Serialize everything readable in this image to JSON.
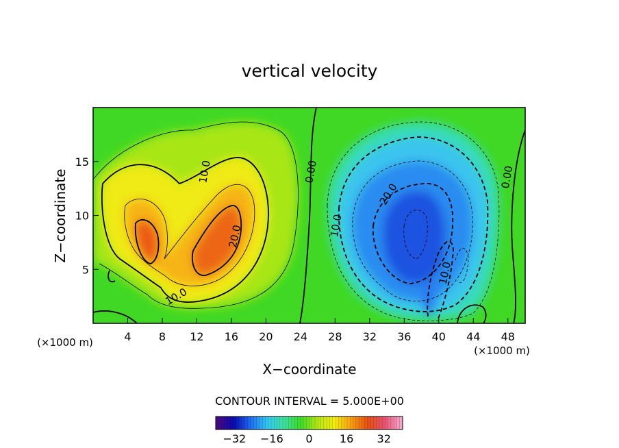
{
  "chart_data": {
    "type": "heatmap",
    "title": "vertical velocity",
    "xlabel": "X−coordinate",
    "ylabel": "Z−coordinate",
    "x_unit_left": "(×1000 m)",
    "x_unit_right": "(×1000 m)",
    "xlim": [
      0,
      50
    ],
    "ylim": [
      0,
      20
    ],
    "x_ticks": [
      4,
      8,
      12,
      16,
      20,
      24,
      28,
      32,
      36,
      40,
      44,
      48
    ],
    "y_ticks": [
      5,
      10,
      15
    ],
    "contour_interval_text": "CONTOUR INTERVAL = 5.000E+00",
    "contour_labels": [
      {
        "text": "10.0",
        "x": 13.3,
        "z": 14.0
      },
      {
        "text": "20.0",
        "x": 16.8,
        "z": 8.0
      },
      {
        "text": "10.0",
        "x": 9.8,
        "z": 2.2
      },
      {
        "text": "0.00",
        "x": 25.6,
        "z": 14.0
      },
      {
        "text": "0.00",
        "x": 48.3,
        "z": 13.5
      },
      {
        "text": "10.0",
        "x": 28.5,
        "z": 9.0
      },
      {
        "text": "20.0",
        "x": 34.5,
        "z": 11.8
      },
      {
        "text": "10.0",
        "x": 41.1,
        "z": 4.6
      }
    ],
    "features": [
      {
        "kind": "updraft",
        "x": 15.5,
        "z": 8.0,
        "peak": 25
      },
      {
        "kind": "updraft",
        "x": 6.3,
        "z": 7.8,
        "peak": 25
      },
      {
        "kind": "downdraft",
        "x": 37.0,
        "z": 8.5,
        "peak": -25
      }
    ],
    "colorbar": {
      "min": -40,
      "max": 40,
      "ticks": [
        -32,
        -16,
        0,
        16,
        32
      ],
      "colors": [
        "#4a0a80",
        "#0a0ab0",
        "#1e6ef0",
        "#34c8f0",
        "#3ee0a0",
        "#3cdc28",
        "#b4e614",
        "#f2ee10",
        "#f8a010",
        "#e65014",
        "#e85070",
        "#f4a8c8"
      ]
    }
  }
}
